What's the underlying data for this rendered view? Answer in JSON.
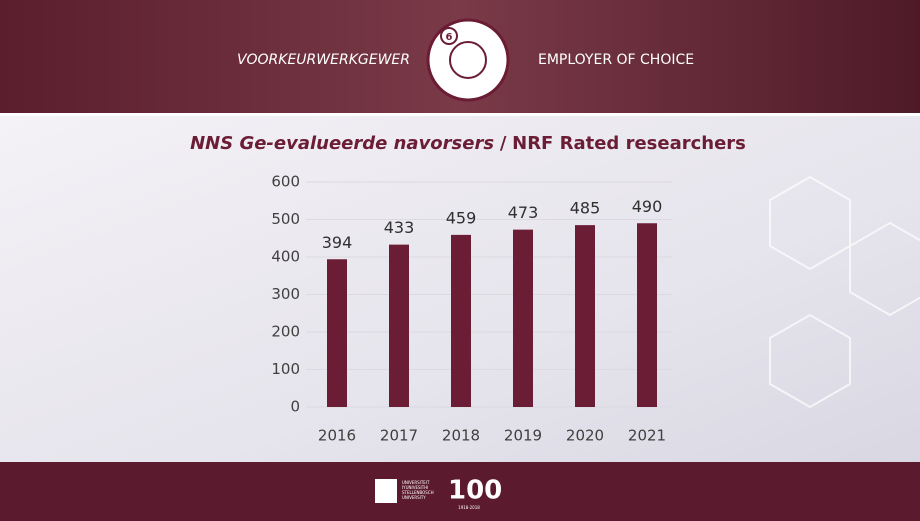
{
  "header": {
    "left": "VOORKEURWERKGEWER",
    "right": "EMPLOYER OF CHOICE",
    "badge": "6"
  },
  "footer": {
    "logo_lines": [
      "UNIVERSITEIT",
      "IYUNIVESITHI",
      "STELLENBOSCH",
      "UNIVERSITY"
    ],
    "centenary": "100",
    "years": "1918·2018"
  },
  "chart_data": {
    "type": "bar",
    "title": {
      "italic": "NNS Ge-evalueerde navorsers",
      "separator": "/",
      "bold": "NRF Rated researchers"
    },
    "categories": [
      "2016",
      "2017",
      "2018",
      "2019",
      "2020",
      "2021"
    ],
    "values": [
      394,
      433,
      459,
      473,
      485,
      490
    ],
    "color": "#6b1d35",
    "ylim": [
      0,
      600
    ],
    "yticks": [
      0,
      100,
      200,
      300,
      400,
      500,
      600
    ],
    "grid": true
  }
}
